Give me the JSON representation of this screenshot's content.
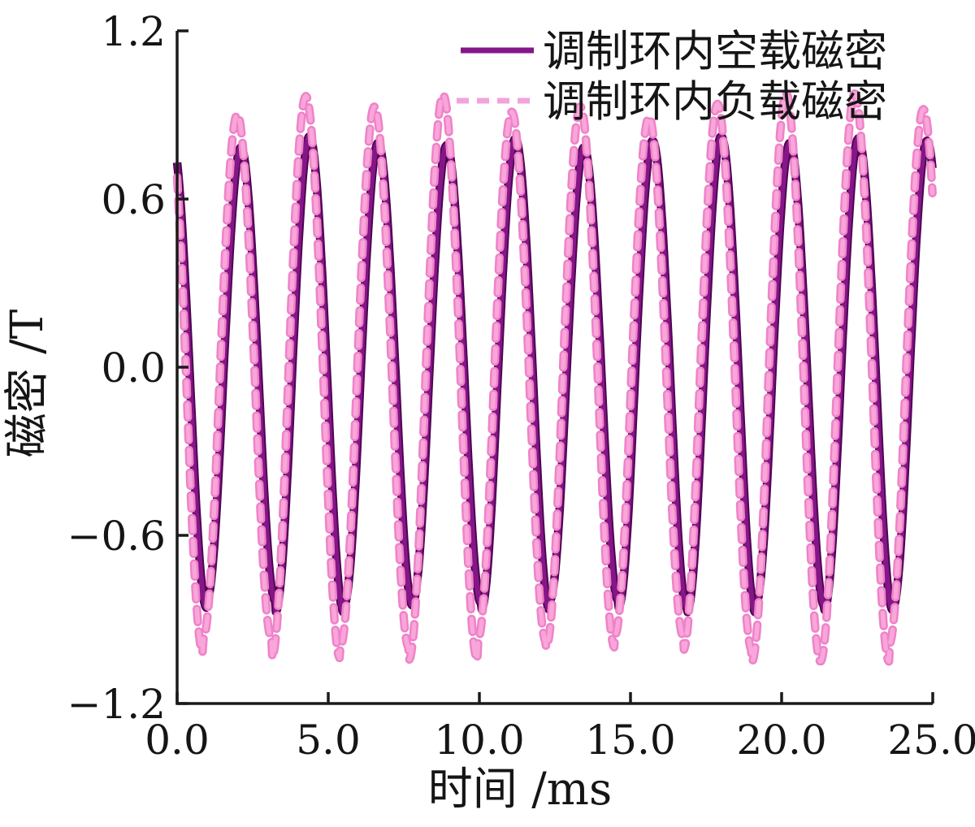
{
  "figure": {
    "background": "#ffffff",
    "text_color": "#151515",
    "axis_color": "#1a1a1a"
  },
  "legend": {
    "items": [
      {
        "label": "调制环内空载磁密",
        "line_style": "solid",
        "color": "#851688"
      },
      {
        "label": "调制环内负载磁密",
        "line_style": "dashed",
        "color": "#f2a3dc"
      }
    ]
  },
  "axes": {
    "x": {
      "title": "时间 /ms",
      "tick_labels": [
        "0.0",
        "5.0",
        "10.0",
        "15.0",
        "20.0",
        "25.0"
      ]
    },
    "y": {
      "title": "磁密 /T",
      "tick_labels": [
        "1.2",
        "0.6",
        "0.0",
        "−0.6",
        "−1.2"
      ]
    }
  },
  "chart_data": {
    "type": "line",
    "title": "",
    "xlabel": "时间 /ms",
    "ylabel": "磁密 /T",
    "xlim": [
      0,
      25
    ],
    "ylim": [
      -1.2,
      1.2
    ],
    "x_ticks": [
      0.0,
      5.0,
      10.0,
      15.0,
      20.0,
      25.0
    ],
    "y_ticks": [
      1.2,
      0.6,
      0.0,
      -0.6,
      -1.2
    ],
    "grid": false,
    "legend_position": "top-right-inside",
    "sample_step_ms": 0.03,
    "series": [
      {
        "name": "调制环内空载磁密",
        "waveform": "sine",
        "line": "solid",
        "color_core": "#851688",
        "color_edge": "#4d0551",
        "width_core": 6.5,
        "width_edge": 10.5,
        "period_ms": 2.27,
        "peak_time_ms": -0.16,
        "amplitude_pos_T": 0.8,
        "amplitude_neg_T": 0.85,
        "cycle_amplitude_jitter": [
          0.01,
          -0.02,
          0.03,
          0.0,
          -0.01,
          0.02,
          -0.02,
          0.01,
          0.03,
          0.0,
          0.02,
          0.01
        ]
      },
      {
        "name": "调制环内负载磁密",
        "waveform": "sine",
        "line": "dashed",
        "dash_pattern": [
          16,
          12
        ],
        "color_core": "#f9a6da",
        "color_edge": "#ef82c8",
        "width_core": 5.5,
        "width_edge": 10.5,
        "period_ms": 2.27,
        "peak_time_ms": -0.28,
        "amplitude_pos_T": 0.93,
        "amplitude_neg_T": 1.0,
        "cycle_amplitude_jitter": [
          0.02,
          -0.03,
          0.04,
          0.0,
          0.045,
          -0.02,
          0.0,
          -0.04,
          0.01,
          0.05,
          0.05,
          -0.01
        ]
      }
    ]
  }
}
